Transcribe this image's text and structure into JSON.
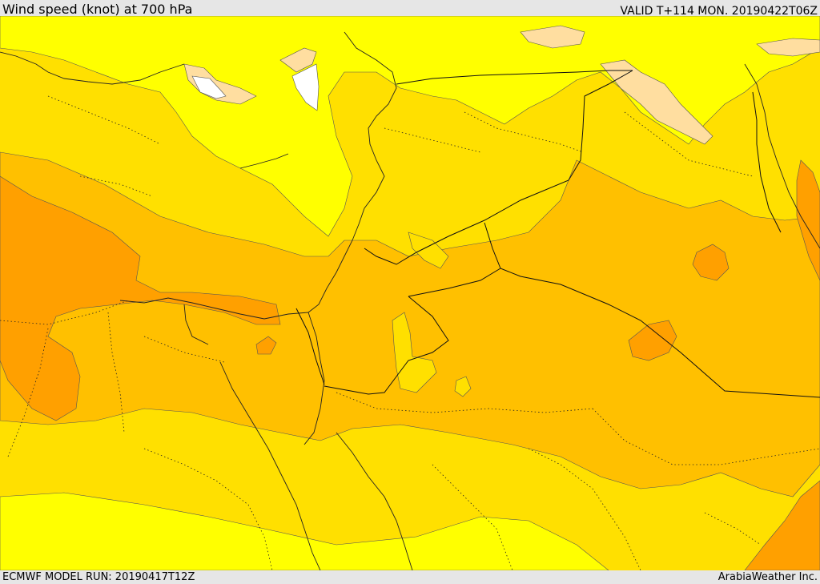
{
  "header": {
    "title": "Wind speed (knot) at 700 hPa",
    "valid": "VALID T+114 MON. 20190422T06Z"
  },
  "footer": {
    "model_run": "ECMWF MODEL RUN: 20190417T12Z",
    "credit": "ArabiaWeather Inc."
  },
  "map": {
    "variable": "Wind speed",
    "unit": "knot",
    "level_hpa": 700,
    "colors": {
      "calm_white": "#ffffff",
      "pale_peach": "#ffdea0",
      "yellow": "#ffff00",
      "gold": "#ffe000",
      "amber": "#ffc000",
      "orange": "#ffa000"
    }
  }
}
